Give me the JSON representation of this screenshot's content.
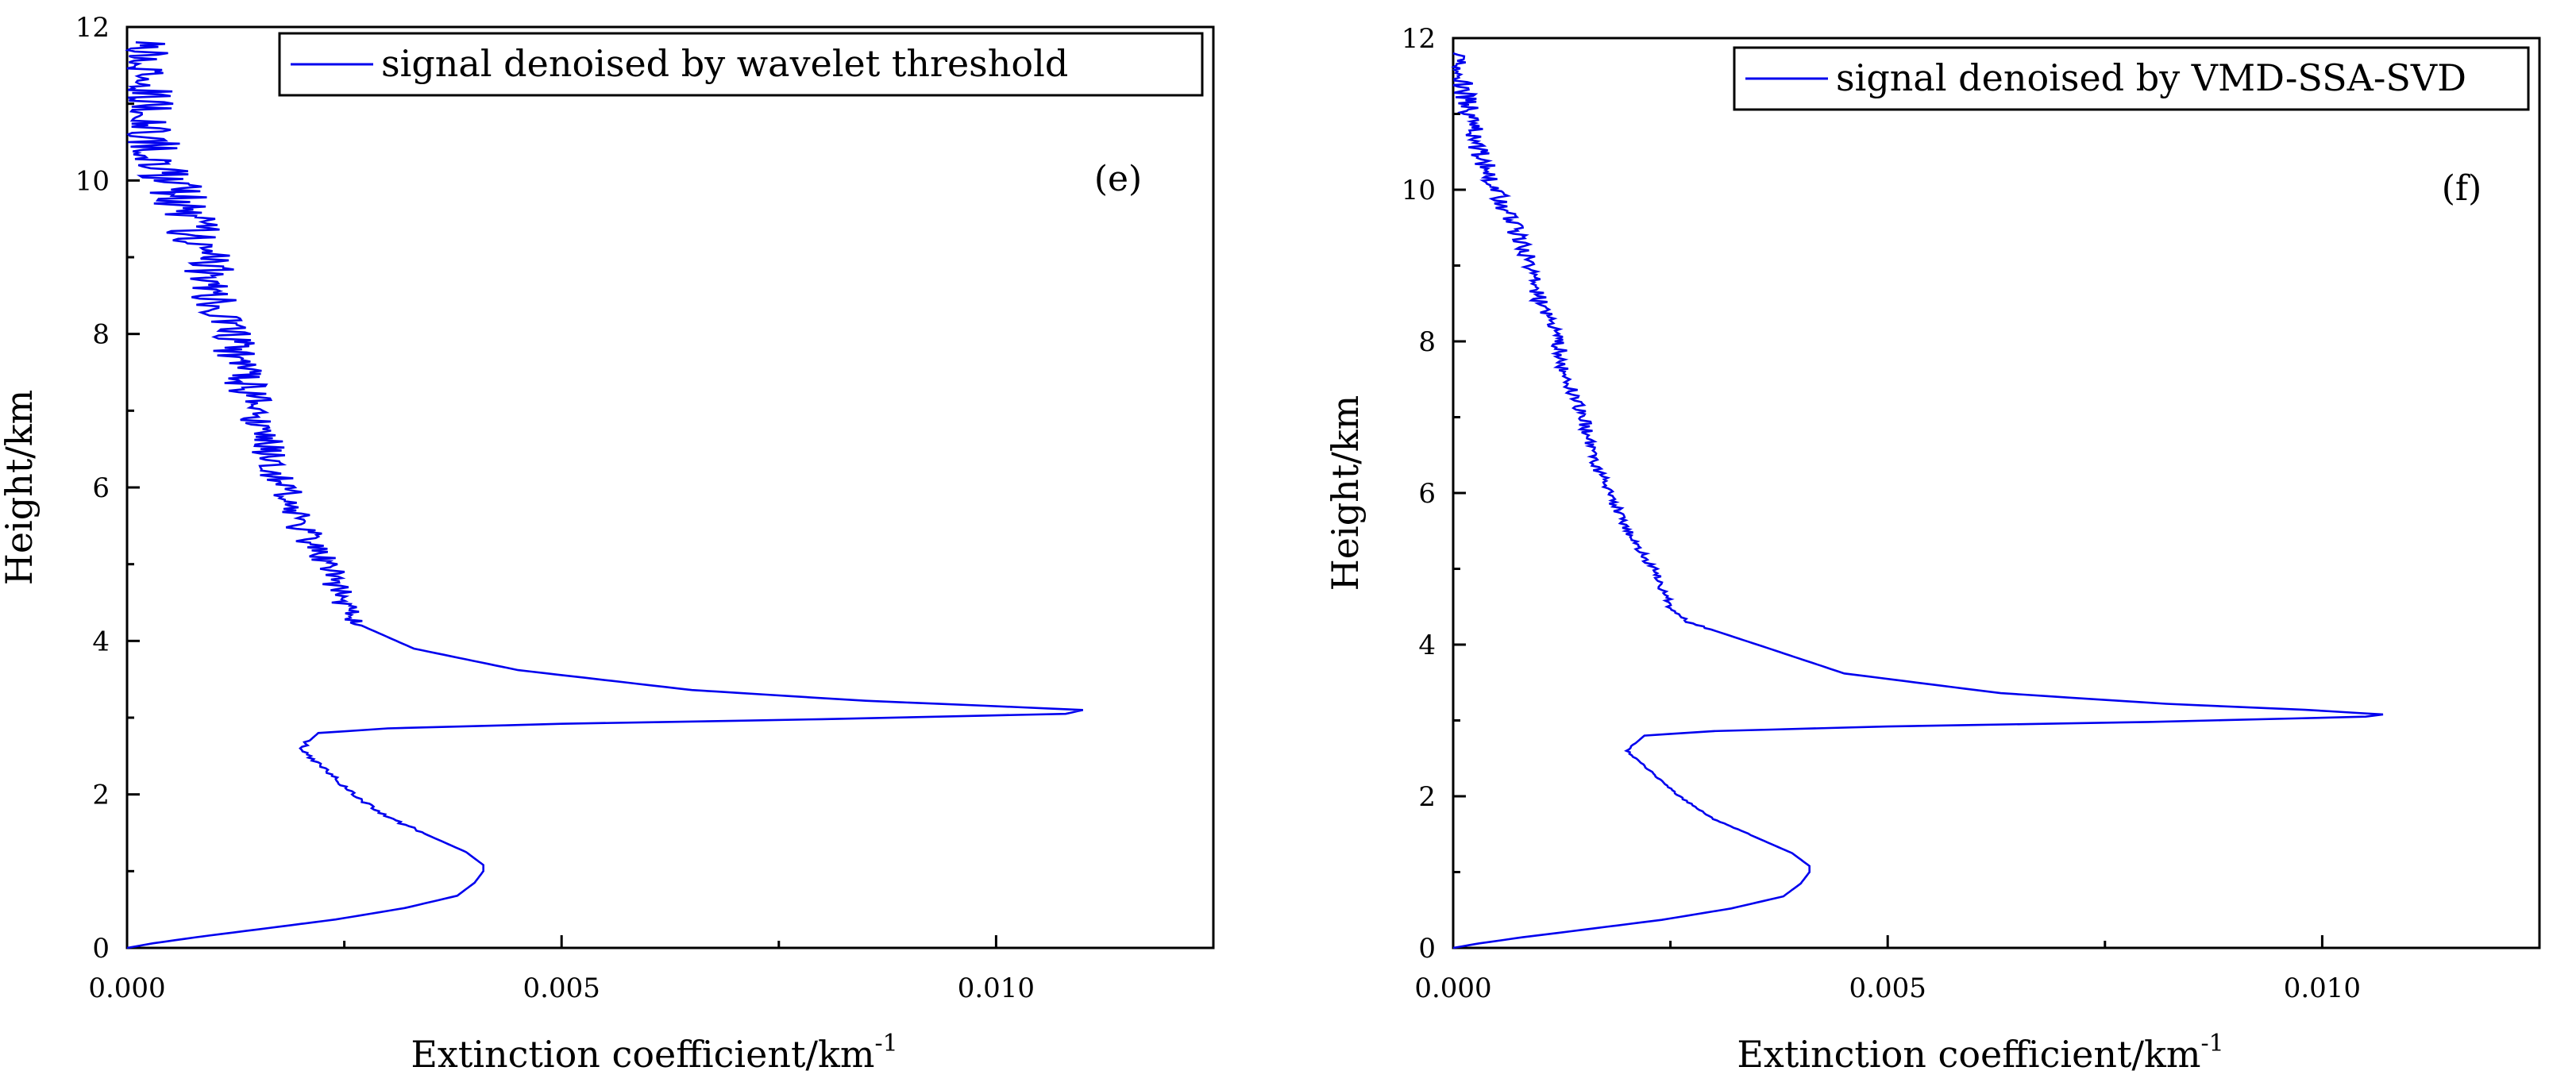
{
  "chart_data": [
    {
      "type": "line",
      "panel_label": "(e)",
      "legend": "signal denoised by wavelet threshold",
      "legend_position": "top-right",
      "xlabel": "Extinction coefficient/km",
      "xlabel_sup": "-1",
      "ylabel": "Height/km",
      "xlim": [
        0,
        0.0125
      ],
      "ylim": [
        0,
        12
      ],
      "xticks": [
        0,
        0.005,
        0.01
      ],
      "xtick_labels": [
        "0.000",
        "0.005",
        "0.010"
      ],
      "yticks": [
        0,
        2,
        4,
        6,
        8,
        10,
        12
      ],
      "ytick_labels": [
        "0",
        "2",
        "4",
        "6",
        "8",
        "10",
        "12"
      ],
      "series_color": "#0000ee",
      "noise": 0.00028,
      "series": [
        {
          "name": "signal denoised by wavelet threshold",
          "points": [
            [
              0.0,
              0.0
            ],
            [
              0.0003,
              0.06
            ],
            [
              0.0008,
              0.14
            ],
            [
              0.0015,
              0.24
            ],
            [
              0.0024,
              0.37
            ],
            [
              0.0032,
              0.52
            ],
            [
              0.0038,
              0.68
            ],
            [
              0.004,
              0.85
            ],
            [
              0.0041,
              1.0
            ],
            [
              0.0041,
              1.08
            ],
            [
              0.0039,
              1.25
            ],
            [
              0.0035,
              1.45
            ],
            [
              0.003,
              1.7
            ],
            [
              0.0026,
              2.0
            ],
            [
              0.0023,
              2.3
            ],
            [
              0.002,
              2.6
            ],
            [
              0.0021,
              2.7
            ],
            [
              0.0022,
              2.8
            ],
            [
              0.003,
              2.86
            ],
            [
              0.005,
              2.92
            ],
            [
              0.008,
              2.98
            ],
            [
              0.0108,
              3.05
            ],
            [
              0.011,
              3.1
            ],
            [
              0.0102,
              3.14
            ],
            [
              0.0085,
              3.22
            ],
            [
              0.0065,
              3.36
            ],
            [
              0.0045,
              3.62
            ],
            [
              0.0033,
              3.9
            ],
            [
              0.0027,
              4.2
            ],
            [
              0.0025,
              4.5
            ],
            [
              0.0023,
              5.0
            ],
            [
              0.002,
              5.5
            ],
            [
              0.0018,
              6.0
            ],
            [
              0.0016,
              6.5
            ],
            [
              0.0015,
              7.0
            ],
            [
              0.0013,
              7.5
            ],
            [
              0.0012,
              8.0
            ],
            [
              0.001,
              8.5
            ],
            [
              0.0009,
              9.0
            ],
            [
              0.0007,
              9.5
            ],
            [
              0.0005,
              10.0
            ],
            [
              0.0003,
              10.5
            ],
            [
              0.0002,
              11.0
            ],
            [
              0.0001,
              11.5
            ],
            [
              0.0001,
              11.8
            ]
          ]
        }
      ]
    },
    {
      "type": "line",
      "panel_label": "(f)",
      "legend": "signal denoised by VMD-SSA-SVD",
      "legend_position": "top-right",
      "xlabel": "Extinction coefficient/km",
      "xlabel_sup": "-1",
      "ylabel": "Height/km",
      "xlim": [
        0,
        0.0125
      ],
      "ylim": [
        0,
        12
      ],
      "xticks": [
        0,
        0.005,
        0.01
      ],
      "xtick_labels": [
        "0.000",
        "0.005",
        "0.010"
      ],
      "yticks": [
        0,
        2,
        4,
        6,
        8,
        10,
        12
      ],
      "ytick_labels": [
        "0",
        "2",
        "4",
        "6",
        "8",
        "10",
        "12"
      ],
      "series_color": "#0000ee",
      "noise": 9e-05,
      "series": [
        {
          "name": "signal denoised by VMD-SSA-SVD",
          "points": [
            [
              0.0,
              0.0
            ],
            [
              0.0003,
              0.06
            ],
            [
              0.0008,
              0.14
            ],
            [
              0.0015,
              0.24
            ],
            [
              0.0024,
              0.37
            ],
            [
              0.0032,
              0.52
            ],
            [
              0.0038,
              0.68
            ],
            [
              0.004,
              0.85
            ],
            [
              0.0041,
              1.0
            ],
            [
              0.0041,
              1.08
            ],
            [
              0.0039,
              1.25
            ],
            [
              0.0035,
              1.45
            ],
            [
              0.003,
              1.7
            ],
            [
              0.0026,
              2.0
            ],
            [
              0.0023,
              2.3
            ],
            [
              0.002,
              2.6
            ],
            [
              0.0021,
              2.7
            ],
            [
              0.0022,
              2.8
            ],
            [
              0.003,
              2.86
            ],
            [
              0.005,
              2.92
            ],
            [
              0.008,
              2.98
            ],
            [
              0.0105,
              3.05
            ],
            [
              0.0107,
              3.08
            ],
            [
              0.0098,
              3.14
            ],
            [
              0.0082,
              3.22
            ],
            [
              0.0063,
              3.36
            ],
            [
              0.0045,
              3.62
            ],
            [
              0.0035,
              4.0
            ],
            [
              0.0027,
              4.3
            ],
            [
              0.0025,
              4.5
            ],
            [
              0.0023,
              5.0
            ],
            [
              0.002,
              5.5
            ],
            [
              0.0018,
              6.0
            ],
            [
              0.0016,
              6.5
            ],
            [
              0.0015,
              7.0
            ],
            [
              0.0013,
              7.5
            ],
            [
              0.0012,
              8.0
            ],
            [
              0.001,
              8.5
            ],
            [
              0.0009,
              9.0
            ],
            [
              0.0007,
              9.5
            ],
            [
              0.0005,
              10.0
            ],
            [
              0.0003,
              10.5
            ],
            [
              0.0002,
              11.0
            ],
            [
              0.0001,
              11.4
            ],
            [
              0.0,
              11.8
            ]
          ]
        }
      ]
    }
  ]
}
